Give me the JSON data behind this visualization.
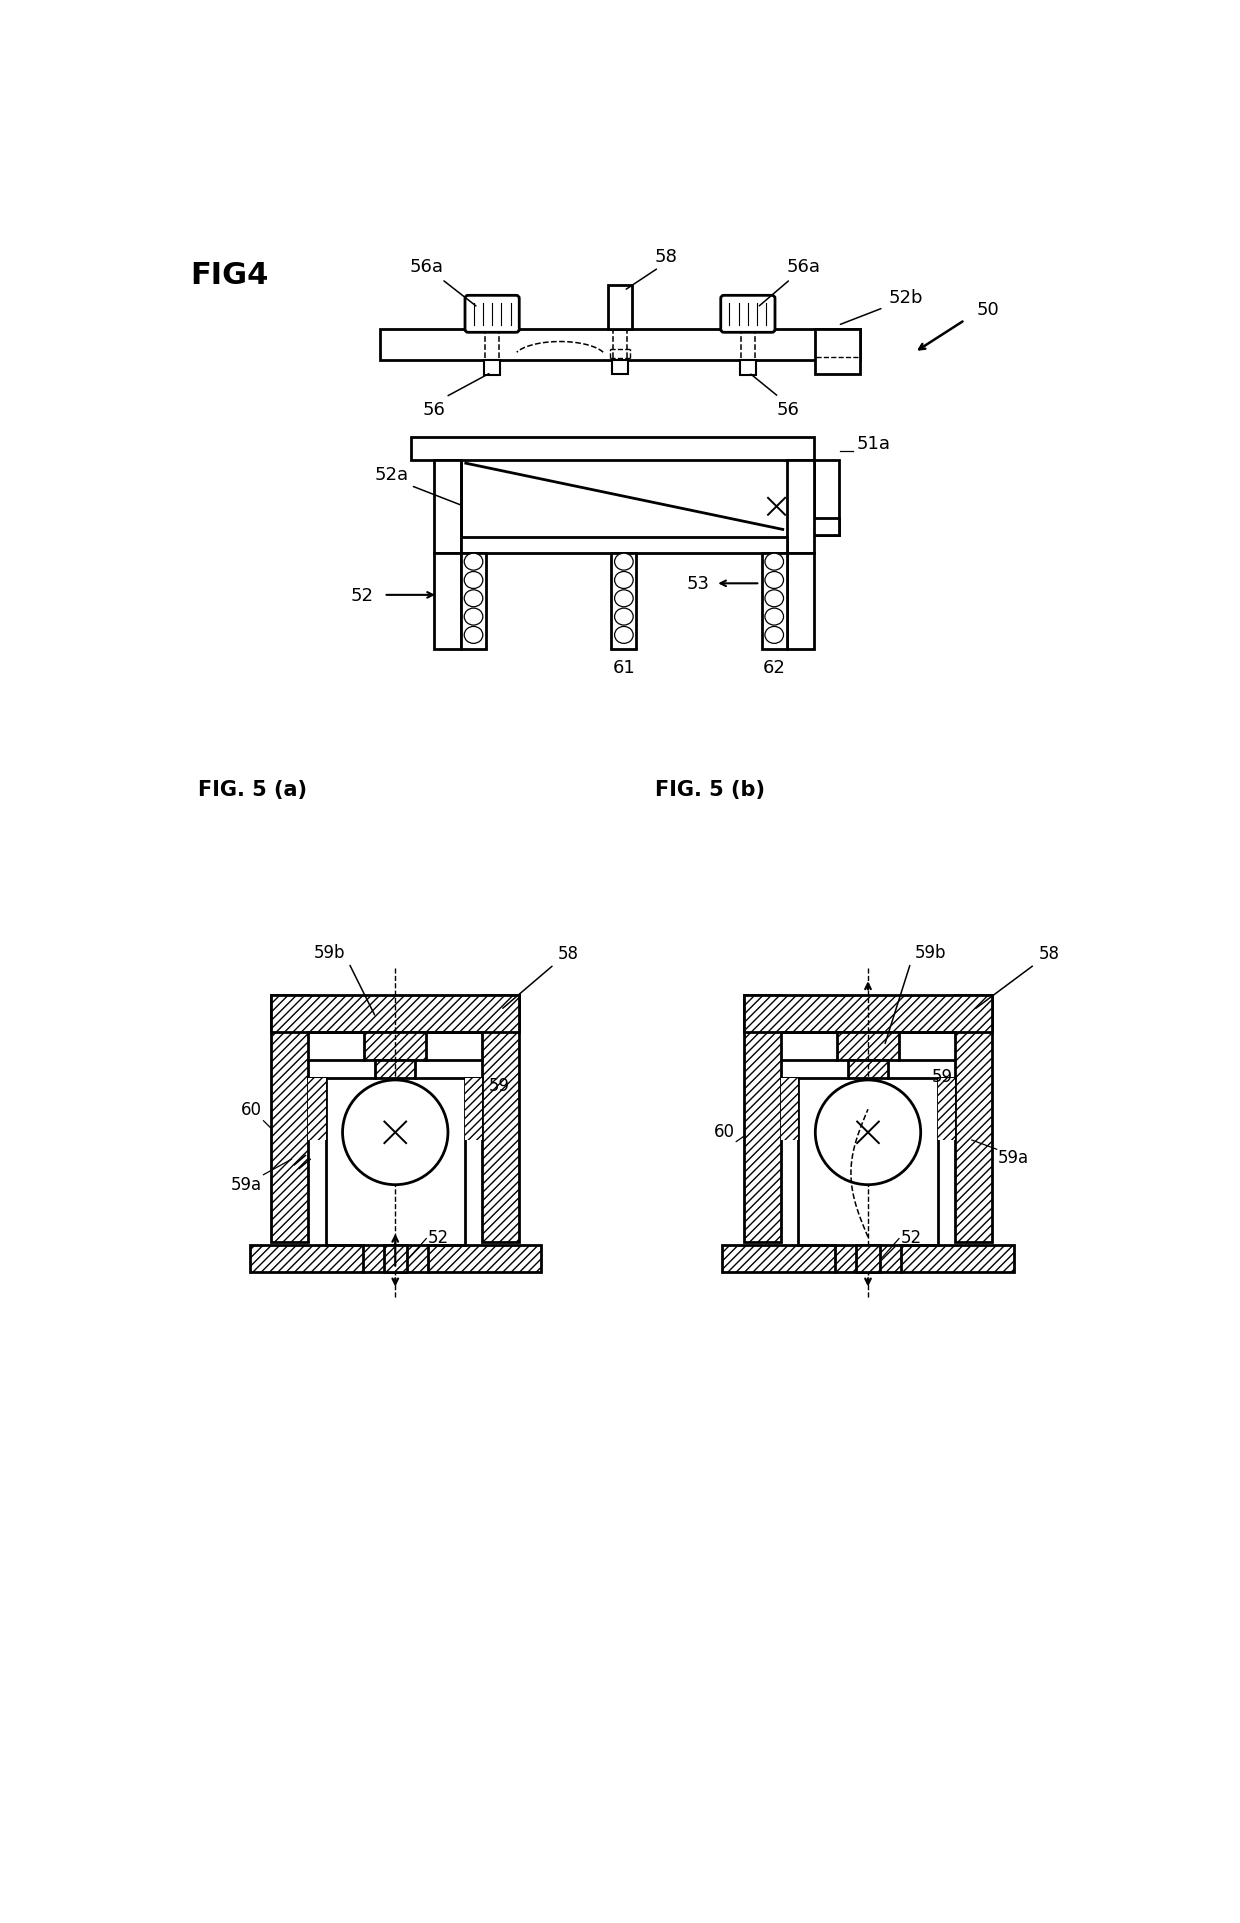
{
  "bg_color": "#ffffff",
  "line_color": "#000000",
  "fig_width": 12.4,
  "fig_height": 19.24,
  "labels": {
    "fig4": "FIG4",
    "fig5a": "FIG. 5 (a)",
    "fig5b": "FIG. 5 (b)",
    "50": "50",
    "51a": "51a",
    "52": "52",
    "52a": "52a",
    "52b": "52b",
    "53": "53",
    "56": "56",
    "56a": "56a",
    "58": "58",
    "59": "59",
    "59a": "59a",
    "59b": "59b",
    "60": "60",
    "61": "61",
    "62": "62"
  }
}
